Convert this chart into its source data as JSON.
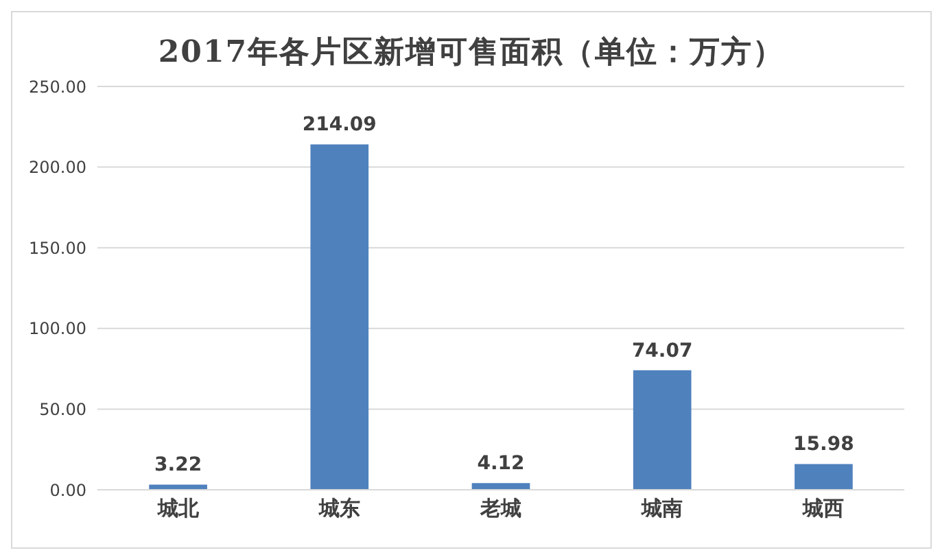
{
  "chart_data": {
    "type": "bar",
    "title": "2017年各片区新增可售面积（单位：万方）",
    "categories": [
      "城北",
      "城东",
      "老城",
      "城南",
      "城西"
    ],
    "values": [
      3.22,
      214.09,
      4.12,
      74.07,
      15.98
    ],
    "color": "#4f81bd",
    "ylim": [
      0,
      250
    ],
    "yticks": [
      {
        "value": 0,
        "label": "0.00"
      },
      {
        "value": 50,
        "label": "50.00"
      },
      {
        "value": 100,
        "label": "100.00"
      },
      {
        "value": 150,
        "label": "150.00"
      },
      {
        "value": 200,
        "label": "200.00"
      },
      {
        "value": 250,
        "label": "250.00"
      }
    ],
    "grid": "y",
    "data_labels": true
  }
}
